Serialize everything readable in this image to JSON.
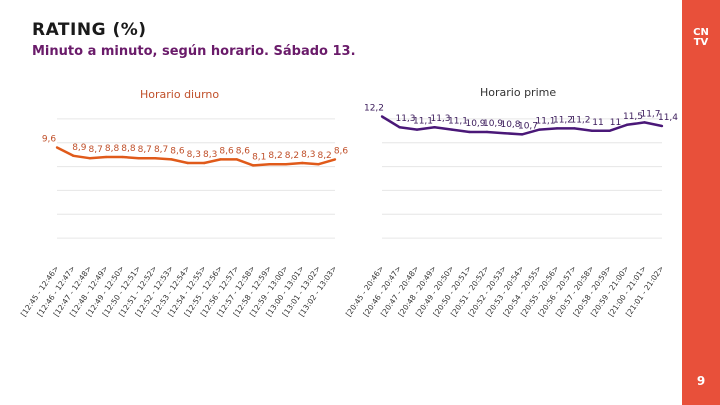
{
  "header": {
    "title": "RATING (%)",
    "subtitle": "Minuto a minuto, según horario. Sábado 13."
  },
  "brand": {
    "logo_line1": "CN",
    "logo_line2": "TV",
    "page_number": "9",
    "color": "#e8503a"
  },
  "chart_data": [
    {
      "type": "line",
      "title": "Horario diurno",
      "color": "#e05a1a",
      "categories": [
        "[12:45 - 12:46>",
        "[12:46 - 12:47>",
        "[12:47 - 12:48>",
        "[12:48 - 12:49>",
        "[12:49 - 12:50>",
        "[12:50 - 12:51>",
        "[12:51 - 12:52>",
        "[12:52 - 12:53>",
        "[12:53 - 12:54>",
        "[12:54 - 12:55>",
        "[12:55 - 12:56>",
        "[12:56 - 12:57>",
        "[12:57 - 12:58>",
        "[12:58 - 12:59>",
        "[12:59 - 13:00>",
        "[13:00 - 13:01>",
        "[13:01 - 13:02>",
        "[13:02 - 13:03>"
      ],
      "values": [
        9.6,
        8.9,
        8.7,
        8.8,
        8.8,
        8.7,
        8.7,
        8.6,
        8.3,
        8.3,
        8.6,
        8.6,
        8.1,
        8.2,
        8.2,
        8.3,
        8.2,
        8.6
      ],
      "labels": [
        "9,6",
        "8,9",
        "8,7",
        "8,8",
        "8,8",
        "8,7",
        "8,7",
        "8,6",
        "8,3",
        "8,3",
        "8,6",
        "8,6",
        "8,1",
        "8,2",
        "8,2",
        "8,3",
        "8,2",
        "8,6"
      ],
      "ylim": [
        0,
        14
      ]
    },
    {
      "type": "line",
      "title": "Horario prime",
      "color": "#4a1878",
      "categories": [
        "[20:45 - 20:46>",
        "[20:46 - 20:47>",
        "[20:47 - 20:48>",
        "[20:48 - 20:49>",
        "[20:49 - 20:50>",
        "[20:50 - 20:51>",
        "[20:51 - 20:52>",
        "[20:52 - 20:53>",
        "[20:53 - 20:54>",
        "[20:54 - 20:55>",
        "[20:55 - 20:56>",
        "[20:56 - 20:57>",
        "[20:57 - 20:58>",
        "[20:58 - 20:59>",
        "[20:59 - 21:00>",
        "[21:00 - 21:01>",
        "[21:01 - 21:02>"
      ],
      "values": [
        12.2,
        11.3,
        11.1,
        11.3,
        11.1,
        10.9,
        10.9,
        10.8,
        10.7,
        11.1,
        11.2,
        11.2,
        11.0,
        11.0,
        11.5,
        11.7,
        11.4
      ],
      "labels": [
        "12,2",
        "11,3",
        "11,1",
        "11,3",
        "11,1",
        "10,9",
        "10,9",
        "10,8",
        "10,7",
        "11,1",
        "11,2",
        "11,2",
        "11",
        "11",
        "11,5",
        "11,7",
        "11,4"
      ],
      "ylim": [
        0,
        14
      ]
    }
  ]
}
